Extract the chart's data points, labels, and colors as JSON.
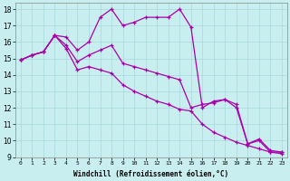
{
  "xlabel": "Windchill (Refroidissement éolien,°C)",
  "bg_color": "#c8eef0",
  "grid_color": "#a8d8dc",
  "line_color": "#aa00aa",
  "xlim": [
    -0.5,
    23.5
  ],
  "ylim": [
    9,
    18.4
  ],
  "xticks": [
    0,
    1,
    2,
    3,
    4,
    5,
    6,
    7,
    8,
    9,
    10,
    11,
    12,
    13,
    14,
    15,
    16,
    17,
    18,
    19,
    20,
    21,
    22,
    23
  ],
  "yticks": [
    9,
    10,
    11,
    12,
    13,
    14,
    15,
    16,
    17,
    18
  ],
  "series1": [
    14.9,
    15.2,
    15.4,
    16.4,
    16.3,
    15.5,
    16.0,
    17.5,
    18.0,
    17.0,
    17.2,
    17.5,
    17.5,
    17.5,
    18.0,
    16.9,
    12.0,
    12.4,
    12.5,
    12.2,
    9.8,
    10.1,
    9.4,
    9.3
  ],
  "series2": [
    14.9,
    15.2,
    15.4,
    16.4,
    15.8,
    14.8,
    15.2,
    15.5,
    15.8,
    14.7,
    14.5,
    14.3,
    14.1,
    13.9,
    13.7,
    12.0,
    12.2,
    12.3,
    12.5,
    12.0,
    9.8,
    10.0,
    9.3,
    9.3
  ],
  "series3": [
    14.9,
    15.2,
    15.4,
    16.4,
    15.6,
    14.3,
    14.5,
    14.3,
    14.1,
    13.4,
    13.0,
    12.7,
    12.4,
    12.2,
    11.9,
    11.8,
    11.0,
    10.5,
    10.2,
    9.9,
    9.7,
    9.5,
    9.3,
    9.2
  ]
}
